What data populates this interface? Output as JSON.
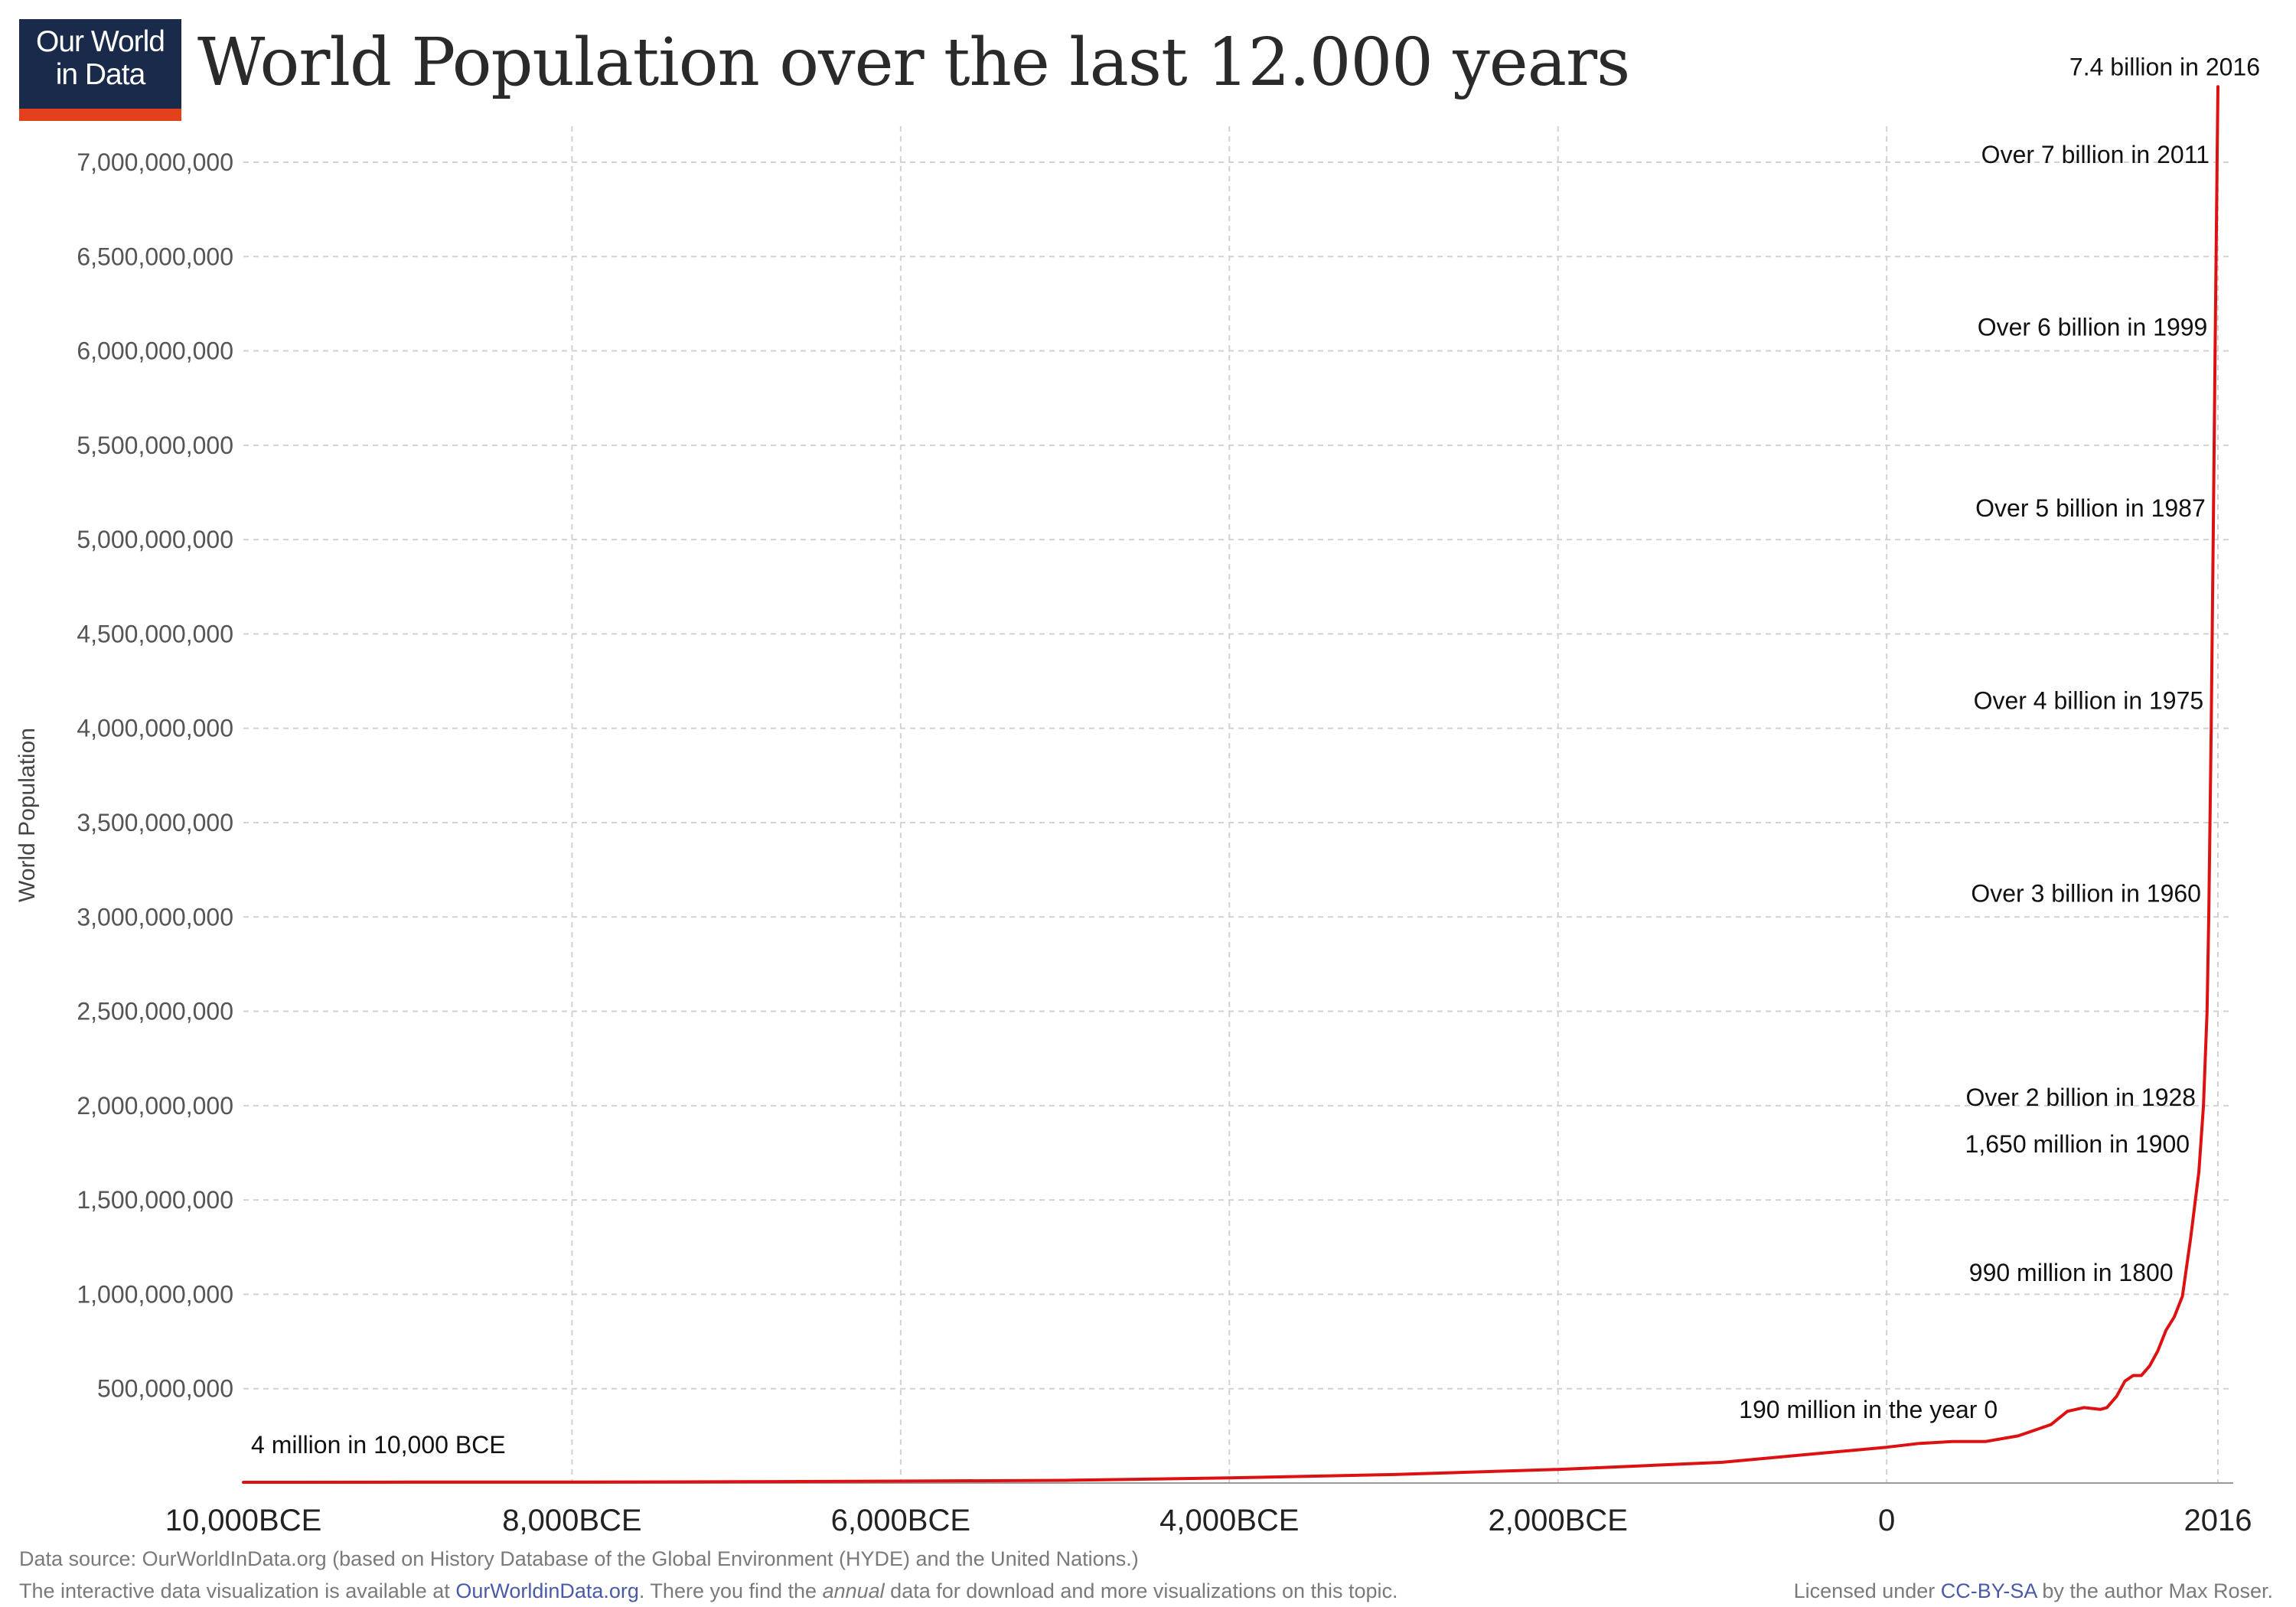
{
  "logo": {
    "line1": "Our World",
    "line2": "in Data"
  },
  "title": "World Population over the last 12.000 years",
  "chart_data": {
    "type": "line",
    "title": "World Population over the last 12.000 years",
    "ylabel": "World Population",
    "xlabel": "",
    "xlim": [
      -10000,
      2016
    ],
    "ylim": [
      0,
      7300000000
    ],
    "grid": true,
    "x_ticks": [
      {
        "value": -10000,
        "label": "10,000BCE"
      },
      {
        "value": -8000,
        "label": "8,000BCE"
      },
      {
        "value": -6000,
        "label": "6,000BCE"
      },
      {
        "value": -4000,
        "label": "4,000BCE"
      },
      {
        "value": -2000,
        "label": "2,000BCE"
      },
      {
        "value": 0,
        "label": "0"
      },
      {
        "value": 2016,
        "label": "2016"
      }
    ],
    "y_ticks": [
      {
        "value": 500000000,
        "label": "500,000,000"
      },
      {
        "value": 1000000000,
        "label": "1,000,000,000"
      },
      {
        "value": 1500000000,
        "label": "1,500,000,000"
      },
      {
        "value": 2000000000,
        "label": "2,000,000,000"
      },
      {
        "value": 2500000000,
        "label": "2,500,000,000"
      },
      {
        "value": 3000000000,
        "label": "3,000,000,000"
      },
      {
        "value": 3500000000,
        "label": "3,500,000,000"
      },
      {
        "value": 4000000000,
        "label": "4,000,000,000"
      },
      {
        "value": 4500000000,
        "label": "4,500,000,000"
      },
      {
        "value": 5000000000,
        "label": "5,000,000,000"
      },
      {
        "value": 5500000000,
        "label": "5,500,000,000"
      },
      {
        "value": 6000000000,
        "label": "6,000,000,000"
      },
      {
        "value": 6500000000,
        "label": "6,500,000,000"
      },
      {
        "value": 7000000000,
        "label": "7,000,000,000"
      }
    ],
    "line_color": "#dd1111",
    "series": [
      {
        "points": [
          [
            -10000,
            4000000
          ],
          [
            -9000,
            5000000
          ],
          [
            -8000,
            5000000
          ],
          [
            -7000,
            7000000
          ],
          [
            -6000,
            10000000
          ],
          [
            -5000,
            14000000
          ],
          [
            -4000,
            27000000
          ],
          [
            -3000,
            45000000
          ],
          [
            -2000,
            72000000
          ],
          [
            -1000,
            110000000
          ],
          [
            -500,
            150000000
          ],
          [
            0,
            190000000
          ],
          [
            200,
            210000000
          ],
          [
            400,
            220000000
          ],
          [
            600,
            220000000
          ],
          [
            800,
            250000000
          ],
          [
            900,
            280000000
          ],
          [
            1000,
            310000000
          ],
          [
            1100,
            380000000
          ],
          [
            1200,
            400000000
          ],
          [
            1300,
            390000000
          ],
          [
            1340,
            400000000
          ],
          [
            1400,
            460000000
          ],
          [
            1450,
            540000000
          ],
          [
            1500,
            570000000
          ],
          [
            1550,
            570000000
          ],
          [
            1600,
            620000000
          ],
          [
            1650,
            700000000
          ],
          [
            1700,
            810000000
          ],
          [
            1750,
            880000000
          ],
          [
            1800,
            990000000
          ],
          [
            1850,
            1300000000
          ],
          [
            1900,
            1650000000
          ],
          [
            1928,
            2000000000
          ],
          [
            1950,
            2500000000
          ],
          [
            1960,
            3000000000
          ],
          [
            1975,
            4000000000
          ],
          [
            1987,
            5000000000
          ],
          [
            1999,
            6000000000
          ],
          [
            2011,
            7000000000
          ],
          [
            2016,
            7400000000
          ]
        ]
      }
    ],
    "annotations": [
      {
        "x": -10000,
        "y": 4000000,
        "text": "4 million in 10,000 BCE"
      },
      {
        "x": 0,
        "y": 190000000,
        "text": "190 million in the year 0"
      },
      {
        "x": 1800,
        "y": 990000000,
        "text": "990 million in 1800"
      },
      {
        "x": 1900,
        "y": 1650000000,
        "text": "1,650 million in 1900"
      },
      {
        "x": 1928,
        "y": 2000000000,
        "text": "Over 2 billion in 1928"
      },
      {
        "x": 1960,
        "y": 3000000000,
        "text": "Over 3 billion in 1960"
      },
      {
        "x": 1975,
        "y": 4000000000,
        "text": "Over 4 billion in 1975"
      },
      {
        "x": 1987,
        "y": 5000000000,
        "text": "Over 5 billion in 1987"
      },
      {
        "x": 1999,
        "y": 6000000000,
        "text": "Over 6 billion in 1999"
      },
      {
        "x": 2011,
        "y": 7000000000,
        "text": "Over 7 billion in 2011"
      },
      {
        "x": 2016,
        "y": 7400000000,
        "text": "7.4 billion in 2016"
      }
    ]
  },
  "footer": {
    "source": "Data source: OurWorldInData.org (based on History Database of the Global Environment (HYDE) and the United Nations.)",
    "interactive_prefix": "The interactive data visualization is available at ",
    "interactive_link": "OurWorldinData.org",
    "interactive_mid": ". There you find the ",
    "interactive_em": "annual",
    "interactive_suffix": " data for download and more visualizations on this topic.",
    "license_prefix": "Licensed under ",
    "license_link": "CC-BY-SA",
    "license_suffix": " by the author Max Roser."
  }
}
